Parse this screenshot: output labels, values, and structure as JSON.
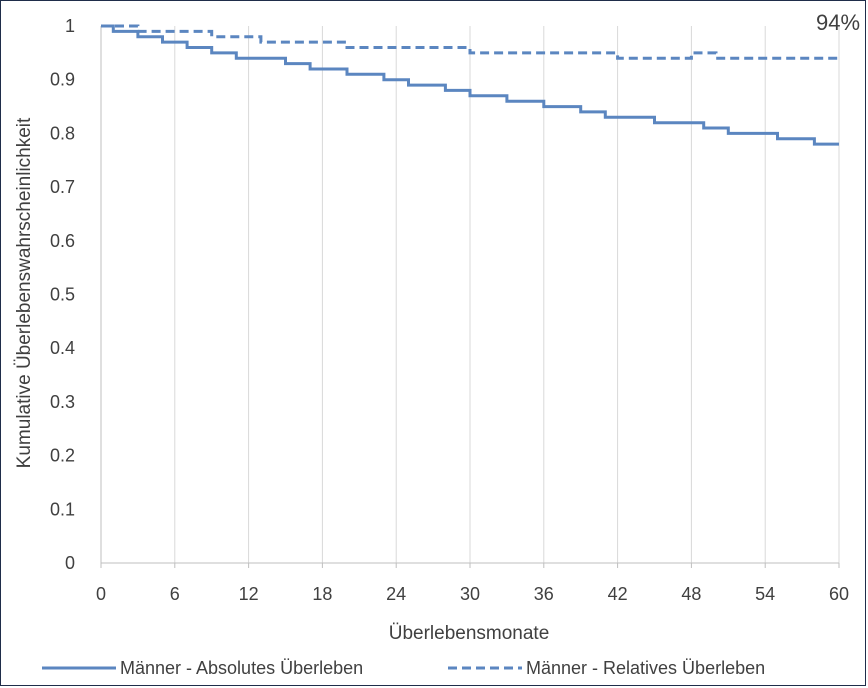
{
  "chart_data": {
    "type": "line",
    "title": "",
    "xlabel": "Überlebensmonate",
    "ylabel": "Kumulative Überlebenswahrscheinlichkeit",
    "xlim": [
      0,
      60
    ],
    "ylim": [
      0,
      1
    ],
    "xticks": [
      0,
      6,
      12,
      18,
      24,
      30,
      36,
      42,
      48,
      54,
      60
    ],
    "yticks": [
      0,
      0.1,
      0.2,
      0.3,
      0.4,
      0.5,
      0.6,
      0.7,
      0.8,
      0.9,
      1
    ],
    "grid": "vertical",
    "legend": "bottom",
    "annotation": "94%",
    "color": "#5b86c0",
    "series": [
      {
        "name": "Männer - Absolutes Überleben",
        "style": "solid",
        "steps": [
          [
            0,
            1.0
          ],
          [
            1,
            0.99
          ],
          [
            3,
            0.98
          ],
          [
            5,
            0.97
          ],
          [
            7,
            0.96
          ],
          [
            9,
            0.95
          ],
          [
            11,
            0.94
          ],
          [
            15,
            0.93
          ],
          [
            17,
            0.92
          ],
          [
            20,
            0.91
          ],
          [
            23,
            0.9
          ],
          [
            25,
            0.89
          ],
          [
            28,
            0.88
          ],
          [
            30,
            0.87
          ],
          [
            33,
            0.86
          ],
          [
            36,
            0.85
          ],
          [
            39,
            0.84
          ],
          [
            41,
            0.83
          ],
          [
            45,
            0.82
          ],
          [
            49,
            0.81
          ],
          [
            51,
            0.8
          ],
          [
            55,
            0.79
          ],
          [
            58,
            0.78
          ],
          [
            60,
            0.78
          ]
        ]
      },
      {
        "name": "Männer - Relatives Überleben",
        "style": "dashed",
        "steps": [
          [
            0,
            1.0
          ],
          [
            3,
            0.99
          ],
          [
            9,
            0.98
          ],
          [
            13,
            0.97
          ],
          [
            20,
            0.96
          ],
          [
            30,
            0.95
          ],
          [
            42,
            0.94
          ],
          [
            48,
            0.95
          ],
          [
            50,
            0.94
          ],
          [
            60,
            0.94
          ]
        ]
      }
    ]
  }
}
